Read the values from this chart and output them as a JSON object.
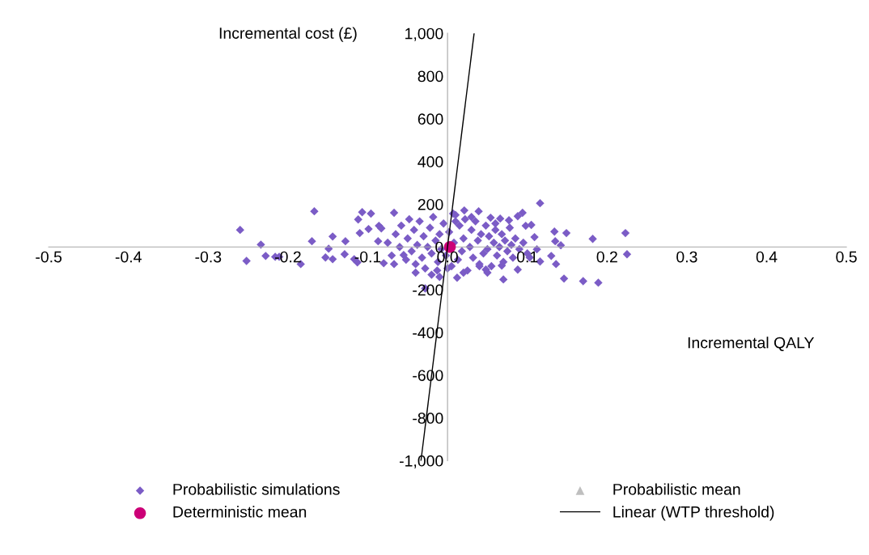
{
  "chart_data": {
    "type": "scatter",
    "xlabel": "Incremental QALY",
    "ylabel": "Incremental cost (£)",
    "xlim": [
      -0.5,
      0.5
    ],
    "ylim": [
      -1000,
      1000
    ],
    "xticks": [
      {
        "value": -0.5,
        "label": "-0.5"
      },
      {
        "value": -0.4,
        "label": "-0.4"
      },
      {
        "value": -0.3,
        "label": "-0.3"
      },
      {
        "value": -0.2,
        "label": "-0.2"
      },
      {
        "value": -0.1,
        "label": "-0.1"
      },
      {
        "value": 0,
        "label": "0.0"
      },
      {
        "value": 0.1,
        "label": "0.1"
      },
      {
        "value": 0.2,
        "label": "0.2"
      },
      {
        "value": 0.3,
        "label": "0.3"
      },
      {
        "value": 0.4,
        "label": "0.4"
      },
      {
        "value": 0.5,
        "label": "0.5"
      }
    ],
    "yticks": [
      {
        "value": -1000,
        "label": "-1,000"
      },
      {
        "value": -800,
        "label": "-800"
      },
      {
        "value": -600,
        "label": "-600"
      },
      {
        "value": -400,
        "label": "-400"
      },
      {
        "value": -200,
        "label": "-200"
      },
      0,
      200,
      400,
      600,
      800,
      {
        "value": 1000,
        "label": "1,000"
      }
    ],
    "grid": false,
    "legend": "bottom",
    "series": [
      {
        "name": "Probabilistic simulations",
        "color": "#7b5cc6",
        "marker": "diamond",
        "x": [
          -0.26,
          -0.252,
          -0.234,
          -0.228,
          -0.216,
          -0.211,
          -0.184,
          -0.167,
          -0.17,
          -0.144,
          -0.149,
          -0.153,
          -0.144,
          -0.128,
          -0.129,
          -0.117,
          -0.113,
          -0.107,
          -0.096,
          -0.112,
          -0.11,
          -0.099,
          -0.086,
          -0.087,
          -0.083,
          -0.067,
          -0.08,
          -0.067,
          -0.055,
          -0.028,
          -0.013,
          0.116,
          0.105,
          0.134,
          0.149,
          0.135,
          0.142,
          0.182,
          0.223,
          0.225,
          0.146,
          0.17,
          0.189,
          0.07,
          0.13,
          0.136,
          0.094,
          0.088,
          0.054,
          0.039,
          0.021,
          0.007,
          0.066,
          0.077,
          0.098,
          0.109,
          0.112,
          0.116,
          0.103,
          0.088,
          0.068,
          0.048,
          0.012,
          -0.075,
          -0.07,
          -0.065,
          -0.06,
          -0.058,
          -0.052,
          -0.05,
          -0.048,
          -0.045,
          -0.042,
          -0.04,
          -0.038,
          -0.035,
          -0.032,
          -0.03,
          -0.028,
          -0.025,
          -0.022,
          -0.02,
          -0.018,
          -0.015,
          -0.012,
          -0.01,
          -0.008,
          -0.005,
          -0.002,
          0.002,
          0.005,
          0.008,
          0.01,
          0.013,
          0.015,
          0.018,
          0.02,
          0.022,
          0.025,
          0.028,
          0.03,
          0.032,
          0.035,
          0.038,
          0.04,
          0.042,
          0.045,
          0.048,
          0.05,
          0.052,
          0.055,
          0.058,
          0.06,
          0.062,
          0.065,
          0.068,
          0.07,
          0.072,
          0.075,
          0.078,
          0.08,
          0.082,
          0.085,
          0.09,
          0.095,
          0.1,
          -0.04,
          -0.02,
          0.0,
          0.02,
          0.04,
          0.06,
          0.03,
          0.01,
          -0.01,
          0.05
        ],
        "values": [
          80,
          -65,
          11,
          -42,
          -46,
          -46,
          -80,
          167,
          27,
          49,
          -8,
          -49,
          -57,
          27,
          -34,
          -57,
          -72,
          163,
          156,
          129,
          65,
          84,
          99,
          27,
          87,
          160,
          -76,
          -80,
          -38,
          -194,
          -110,
          205,
          103,
          72,
          65,
          27,
          8,
          38,
          65,
          -34,
          -148,
          -160,
          -167,
          -152,
          -42,
          -80,
          160,
          144,
          137,
          167,
          171,
          156,
          133,
          125,
          99,
          46,
          -11,
          -68,
          -49,
          -106,
          -87,
          -106,
          -144,
          20,
          -40,
          60,
          0,
          100,
          -60,
          40,
          130,
          -20,
          80,
          -80,
          10,
          120,
          -50,
          50,
          -100,
          0,
          90,
          -30,
          140,
          30,
          -70,
          60,
          -10,
          110,
          -40,
          70,
          -90,
          20,
          150,
          -60,
          100,
          -20,
          40,
          130,
          -110,
          0,
          80,
          -50,
          120,
          30,
          -80,
          60,
          -30,
          100,
          -10,
          50,
          -90,
          20,
          80,
          -40,
          0,
          60,
          -70,
          30,
          -20,
          90,
          10,
          -50,
          40,
          -10,
          20,
          -30,
          -120,
          -130,
          -100,
          -120,
          -90,
          110,
          140,
          120,
          -140,
          -120
        ]
      },
      {
        "name": "Deterministic mean",
        "color": "#cc0077",
        "marker": "circle",
        "x": [
          0.003
        ],
        "values": [
          0
        ]
      },
      {
        "name": "Probabilistic mean",
        "color": "#bfbfbf",
        "marker": "triangle",
        "x": [
          null
        ],
        "values": [
          null
        ]
      },
      {
        "name": "Linear (WTP threshold)",
        "type": "line",
        "color": "#000000",
        "marker": "none",
        "line_style": "solid",
        "x": [
          -0.0333,
          0.0333
        ],
        "values": [
          -1000,
          1000
        ]
      }
    ]
  }
}
